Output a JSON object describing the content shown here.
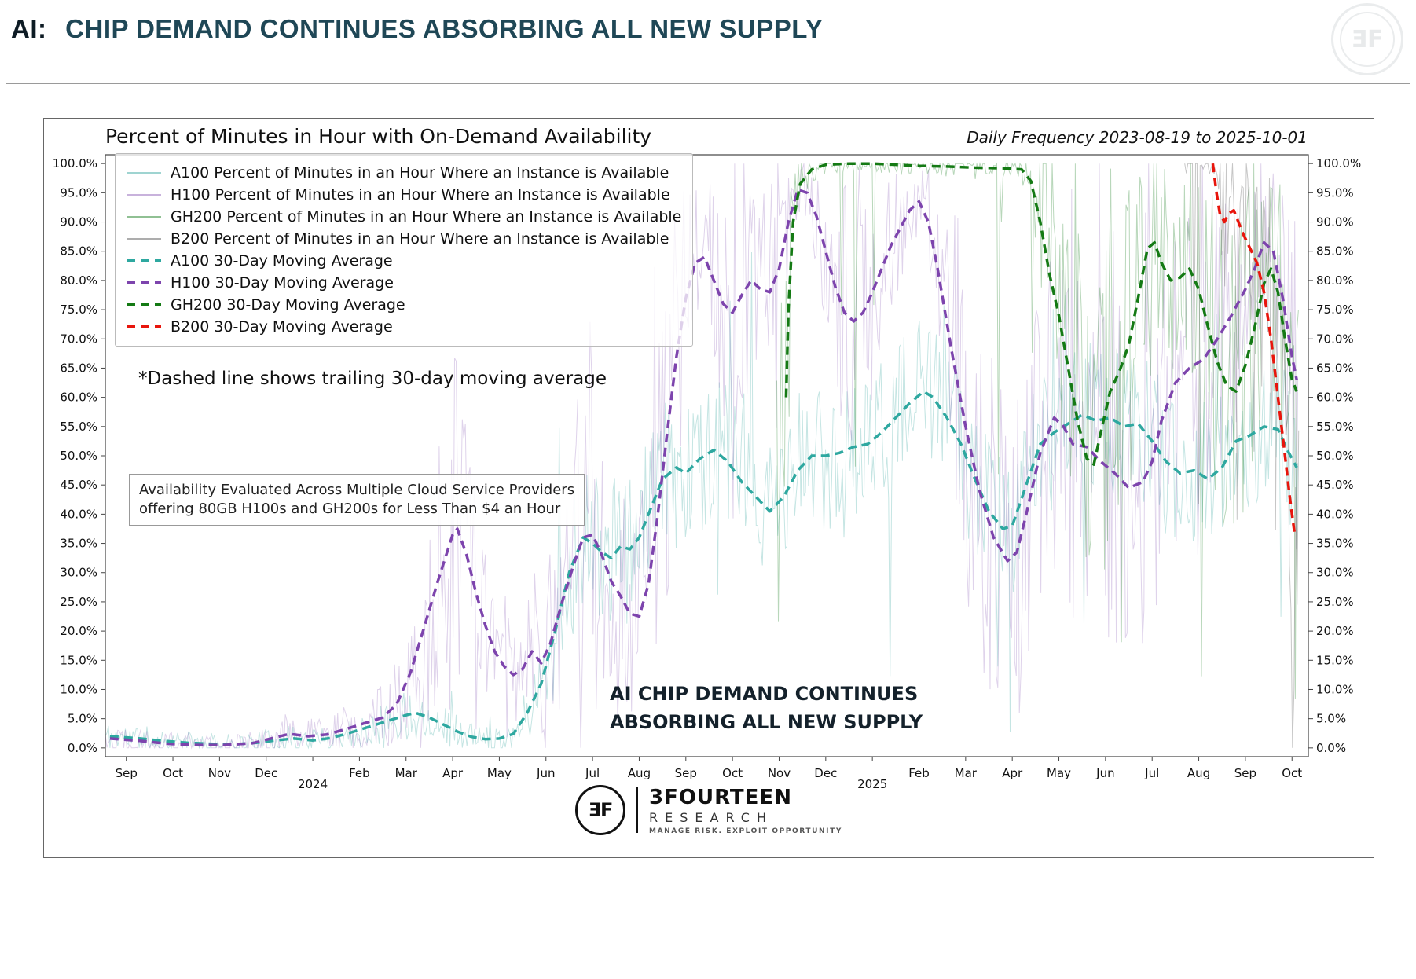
{
  "header": {
    "prefix": "AI:",
    "title": "CHIP DEMAND CONTINUES ABSORBING ALL NEW SUPPLY"
  },
  "footer": {
    "monogram": "ƎF",
    "brand": "3FOURTEEN",
    "brand_sub": "RESEARCH",
    "tagline": "MANAGE RISK. EXPLOIT OPPORTUNITY"
  },
  "chart_data": {
    "type": "line",
    "title": "Percent of Minutes in Hour with On-Demand Availability",
    "subtitle": "Daily Frequency 2023-08-19 to 2025-10-01",
    "note": "*Dashed line shows trailing 30-day moving average",
    "box_note": [
      "Availability Evaluated Across Multiple Cloud Service Providers",
      "offering 80GB H100s and GH200s for Less Than $4 an Hour"
    ],
    "watermark": [
      "AI CHIP DEMAND CONTINUES",
      "ABSORBING ALL NEW SUPPLY"
    ],
    "grid": false,
    "legend_position": "upper-left",
    "x_axis": {
      "unit": "months since Sep 2023",
      "range": [
        -0.45,
        25.35
      ],
      "tick_labels": [
        "Sep",
        "Oct",
        "Nov",
        "Dec",
        "2024",
        "Feb",
        "Mar",
        "Apr",
        "May",
        "Jun",
        "Jul",
        "Aug",
        "Sep",
        "Oct",
        "Nov",
        "Dec",
        "2025",
        "Feb",
        "Mar",
        "Apr",
        "May",
        "Jun",
        "Jul",
        "Aug",
        "Sep",
        "Oct"
      ]
    },
    "y_axis": {
      "min": 0,
      "max": 100,
      "step": 5,
      "mirrored_right": true,
      "tick_labels": [
        "0.0%",
        "5.0%",
        "10.0%",
        "15.0%",
        "20.0%",
        "25.0%",
        "30.0%",
        "35.0%",
        "40.0%",
        "45.0%",
        "50.0%",
        "55.0%",
        "60.0%",
        "65.0%",
        "70.0%",
        "75.0%",
        "80.0%",
        "85.0%",
        "90.0%",
        "95.0%",
        "100.0%"
      ]
    },
    "legend": [
      {
        "label": "A100 Percent of Minutes in an Hour Where an Instance is Available",
        "color": "rgba(64,170,163,0.5)",
        "dash": false
      },
      {
        "label": "H100 Percent of Minutes in an Hour Where an Instance is Available",
        "color": "rgba(132,84,178,0.45)",
        "dash": false
      },
      {
        "label": "GH200 Percent of Minutes in an Hour Where an Instance is Available",
        "color": "rgba(34,130,40,0.5)",
        "dash": false
      },
      {
        "label": "B200 Percent of Minutes in an Hour Where an Instance is Available",
        "color": "rgba(105,105,105,0.55)",
        "dash": false
      },
      {
        "label": "A100 30-Day Moving Average",
        "color": "#2ea8a0",
        "dash": true
      },
      {
        "label": "H100 30-Day Moving Average",
        "color": "#7d44ad",
        "dash": true
      },
      {
        "label": "GH200 30-Day Moving Average",
        "color": "#147a14",
        "dash": true
      },
      {
        "label": "B200 30-Day Moving Average",
        "color": "#e8150c",
        "dash": true
      }
    ],
    "series": [
      {
        "name": "A100 30-Day Moving Average",
        "key": "A100",
        "color": "#2ea8a0",
        "style": "dashed",
        "points": [
          [
            -0.35,
            2.0
          ],
          [
            0.3,
            1.6
          ],
          [
            0.8,
            1.2
          ],
          [
            1.3,
            0.9
          ],
          [
            1.8,
            0.7
          ],
          [
            2.3,
            0.6
          ],
          [
            2.8,
            0.9
          ],
          [
            3.2,
            1.3
          ],
          [
            3.6,
            1.6
          ],
          [
            4.0,
            1.3
          ],
          [
            4.4,
            1.7
          ],
          [
            4.8,
            2.6
          ],
          [
            5.2,
            3.6
          ],
          [
            5.6,
            4.6
          ],
          [
            6.0,
            5.6
          ],
          [
            6.2,
            6.0
          ],
          [
            6.5,
            5.2
          ],
          [
            6.8,
            4.0
          ],
          [
            7.1,
            2.8
          ],
          [
            7.4,
            1.9
          ],
          [
            7.7,
            1.5
          ],
          [
            8.0,
            1.6
          ],
          [
            8.3,
            2.4
          ],
          [
            8.6,
            6.0
          ],
          [
            8.9,
            11.0
          ],
          [
            9.2,
            20.0
          ],
          [
            9.5,
            30.0
          ],
          [
            9.8,
            36.0
          ],
          [
            10.0,
            35.0
          ],
          [
            10.2,
            33.5
          ],
          [
            10.4,
            32.5
          ],
          [
            10.6,
            34.5
          ],
          [
            10.8,
            34.0
          ],
          [
            11.0,
            36.0
          ],
          [
            11.2,
            40.0
          ],
          [
            11.5,
            46.0
          ],
          [
            11.8,
            48.0
          ],
          [
            12.0,
            47.0
          ],
          [
            12.3,
            49.5
          ],
          [
            12.6,
            51.0
          ],
          [
            12.9,
            49.0
          ],
          [
            13.2,
            45.5
          ],
          [
            13.5,
            43.0
          ],
          [
            13.8,
            40.5
          ],
          [
            14.1,
            43.0
          ],
          [
            14.4,
            47.5
          ],
          [
            14.7,
            50.0
          ],
          [
            15.0,
            50.0
          ],
          [
            15.3,
            50.5
          ],
          [
            15.6,
            51.5
          ],
          [
            15.9,
            52.0
          ],
          [
            16.2,
            54.0
          ],
          [
            16.5,
            56.5
          ],
          [
            16.8,
            59.0
          ],
          [
            17.1,
            61.0
          ],
          [
            17.3,
            60.0
          ],
          [
            17.6,
            56.5
          ],
          [
            17.9,
            52.0
          ],
          [
            18.2,
            46.0
          ],
          [
            18.5,
            40.5
          ],
          [
            18.8,
            37.5
          ],
          [
            19.0,
            38.0
          ],
          [
            19.3,
            45.0
          ],
          [
            19.6,
            52.0
          ],
          [
            19.9,
            54.0
          ],
          [
            20.2,
            55.5
          ],
          [
            20.5,
            57.0
          ],
          [
            20.8,
            56.0
          ],
          [
            21.1,
            56.5
          ],
          [
            21.4,
            55.0
          ],
          [
            21.7,
            55.5
          ],
          [
            22.0,
            52.5
          ],
          [
            22.3,
            49.0
          ],
          [
            22.6,
            47.0
          ],
          [
            22.9,
            47.5
          ],
          [
            23.2,
            46.0
          ],
          [
            23.5,
            48.0
          ],
          [
            23.8,
            52.5
          ],
          [
            24.1,
            53.5
          ],
          [
            24.4,
            55.0
          ],
          [
            24.7,
            54.5
          ],
          [
            24.9,
            51.0
          ],
          [
            25.1,
            48.0
          ]
        ]
      },
      {
        "name": "H100 30-Day Moving Average",
        "key": "H100",
        "color": "#7d44ad",
        "style": "dashed",
        "points": [
          [
            -0.35,
            1.6
          ],
          [
            0.3,
            1.2
          ],
          [
            0.9,
            0.7
          ],
          [
            1.5,
            0.5
          ],
          [
            2.1,
            0.5
          ],
          [
            2.7,
            0.8
          ],
          [
            3.1,
            1.6
          ],
          [
            3.5,
            2.4
          ],
          [
            3.9,
            2.0
          ],
          [
            4.3,
            2.3
          ],
          [
            4.7,
            3.2
          ],
          [
            5.1,
            4.2
          ],
          [
            5.5,
            5.2
          ],
          [
            5.8,
            7.5
          ],
          [
            6.1,
            13.0
          ],
          [
            6.4,
            21.0
          ],
          [
            6.7,
            29.0
          ],
          [
            7.0,
            36.5
          ],
          [
            7.1,
            37.5
          ],
          [
            7.3,
            33.0
          ],
          [
            7.5,
            26.5
          ],
          [
            7.7,
            21.0
          ],
          [
            7.9,
            16.5
          ],
          [
            8.1,
            14.0
          ],
          [
            8.3,
            12.5
          ],
          [
            8.5,
            13.5
          ],
          [
            8.7,
            16.5
          ],
          [
            8.9,
            14.5
          ],
          [
            9.1,
            18.0
          ],
          [
            9.35,
            25.0
          ],
          [
            9.6,
            31.5
          ],
          [
            9.8,
            36.0
          ],
          [
            10.0,
            36.5
          ],
          [
            10.2,
            33.0
          ],
          [
            10.4,
            28.5
          ],
          [
            10.6,
            26.0
          ],
          [
            10.8,
            23.0
          ],
          [
            11.0,
            22.5
          ],
          [
            11.2,
            28.0
          ],
          [
            11.4,
            40.0
          ],
          [
            11.6,
            54.0
          ],
          [
            11.8,
            67.0
          ],
          [
            12.0,
            77.0
          ],
          [
            12.2,
            83.0
          ],
          [
            12.4,
            84.0
          ],
          [
            12.6,
            80.0
          ],
          [
            12.8,
            76.0
          ],
          [
            13.0,
            74.5
          ],
          [
            13.2,
            77.5
          ],
          [
            13.4,
            80.0
          ],
          [
            13.6,
            78.5
          ],
          [
            13.8,
            78.0
          ],
          [
            14.0,
            82.0
          ],
          [
            14.2,
            90.0
          ],
          [
            14.4,
            95.5
          ],
          [
            14.6,
            95.0
          ],
          [
            14.8,
            91.0
          ],
          [
            15.0,
            85.0
          ],
          [
            15.2,
            79.0
          ],
          [
            15.4,
            74.5
          ],
          [
            15.6,
            73.0
          ],
          [
            15.8,
            74.5
          ],
          [
            16.0,
            78.0
          ],
          [
            16.2,
            82.0
          ],
          [
            16.4,
            86.0
          ],
          [
            16.6,
            89.0
          ],
          [
            16.8,
            92.0
          ],
          [
            17.0,
            93.5
          ],
          [
            17.2,
            90.0
          ],
          [
            17.4,
            82.0
          ],
          [
            17.7,
            68.0
          ],
          [
            18.0,
            55.0
          ],
          [
            18.3,
            44.0
          ],
          [
            18.6,
            36.0
          ],
          [
            18.9,
            32.0
          ],
          [
            19.1,
            33.5
          ],
          [
            19.3,
            40.0
          ],
          [
            19.6,
            50.5
          ],
          [
            19.9,
            56.5
          ],
          [
            20.1,
            55.0
          ],
          [
            20.3,
            52.0
          ],
          [
            20.6,
            51.5
          ],
          [
            20.9,
            49.0
          ],
          [
            21.2,
            47.0
          ],
          [
            21.5,
            44.5
          ],
          [
            21.8,
            45.5
          ],
          [
            22.0,
            49.0
          ],
          [
            22.2,
            56.0
          ],
          [
            22.5,
            62.5
          ],
          [
            22.8,
            65.0
          ],
          [
            23.1,
            66.5
          ],
          [
            23.4,
            70.0
          ],
          [
            23.7,
            74.0
          ],
          [
            24.0,
            78.5
          ],
          [
            24.2,
            82.0
          ],
          [
            24.4,
            86.5
          ],
          [
            24.6,
            85.0
          ],
          [
            24.8,
            77.0
          ],
          [
            25.0,
            67.0
          ],
          [
            25.1,
            63.0
          ]
        ]
      },
      {
        "name": "GH200 30-Day Moving Average",
        "key": "GH200",
        "color": "#147a14",
        "style": "dashed",
        "points": [
          [
            14.15,
            60.0
          ],
          [
            14.2,
            75.0
          ],
          [
            14.3,
            90.0
          ],
          [
            14.45,
            96.5
          ],
          [
            14.7,
            99.0
          ],
          [
            15.0,
            99.8
          ],
          [
            15.5,
            100.0
          ],
          [
            16.0,
            100.0
          ],
          [
            16.5,
            99.8
          ],
          [
            17.0,
            99.6
          ],
          [
            17.6,
            99.5
          ],
          [
            18.2,
            99.3
          ],
          [
            18.8,
            99.2
          ],
          [
            19.2,
            99.0
          ],
          [
            19.4,
            97.0
          ],
          [
            19.6,
            90.0
          ],
          [
            19.8,
            81.0
          ],
          [
            20.0,
            74.0
          ],
          [
            20.2,
            65.0
          ],
          [
            20.4,
            56.0
          ],
          [
            20.6,
            49.5
          ],
          [
            20.75,
            48.5
          ],
          [
            20.9,
            54.0
          ],
          [
            21.1,
            61.0
          ],
          [
            21.3,
            64.5
          ],
          [
            21.5,
            69.0
          ],
          [
            21.7,
            77.0
          ],
          [
            21.9,
            85.5
          ],
          [
            22.05,
            86.5
          ],
          [
            22.2,
            83.0
          ],
          [
            22.4,
            80.0
          ],
          [
            22.6,
            80.5
          ],
          [
            22.8,
            82.0
          ],
          [
            23.0,
            78.5
          ],
          [
            23.2,
            72.0
          ],
          [
            23.4,
            66.0
          ],
          [
            23.6,
            62.0
          ],
          [
            23.8,
            61.0
          ],
          [
            24.0,
            65.5
          ],
          [
            24.2,
            72.0
          ],
          [
            24.4,
            79.5
          ],
          [
            24.55,
            82.0
          ],
          [
            24.7,
            78.0
          ],
          [
            24.85,
            70.0
          ],
          [
            25.0,
            63.0
          ],
          [
            25.1,
            61.0
          ]
        ]
      },
      {
        "name": "B200 30-Day Moving Average",
        "key": "B200",
        "color": "#e8150c",
        "style": "dashed",
        "points": [
          [
            23.3,
            100.0
          ],
          [
            23.38,
            95.0
          ],
          [
            23.45,
            91.5
          ],
          [
            23.55,
            90.0
          ],
          [
            23.65,
            91.5
          ],
          [
            23.75,
            92.0
          ],
          [
            23.85,
            90.0
          ],
          [
            23.95,
            88.0
          ],
          [
            24.1,
            85.5
          ],
          [
            24.25,
            83.0
          ],
          [
            24.4,
            78.0
          ],
          [
            24.55,
            70.0
          ],
          [
            24.7,
            60.0
          ],
          [
            24.85,
            50.0
          ],
          [
            24.95,
            43.0
          ],
          [
            25.05,
            37.0
          ]
        ]
      }
    ],
    "raw_series": [
      {
        "name": "A100 Percent of Minutes in an Hour Where an Instance is Available",
        "follows": "A100",
        "color": "rgba(64,170,163,0.30)",
        "start": -0.45,
        "end": 25.15,
        "amp_base": 1.5,
        "amp_k": 0.5,
        "amp_max": 13,
        "spike_prob": 0.05,
        "spike_mag": 38,
        "seed": 11
      },
      {
        "name": "H100 Percent of Minutes in an Hour Where an Instance is Available",
        "follows": "H100",
        "color": "rgba(132,84,178,0.26)",
        "start": -0.45,
        "end": 25.15,
        "amp_base": 1.5,
        "amp_k": 0.8,
        "amp_max": 30,
        "spike_prob": 0.08,
        "spike_mag": 45,
        "seed": 22
      },
      {
        "name": "GH200 Percent of Minutes in an Hour Where an Instance is Available",
        "follows": "GH200",
        "color": "rgba(34,130,40,0.32)",
        "start": 13.95,
        "end": 25.15,
        "amp_base": 1.5,
        "amp_k": 1.0,
        "amp_max": 28,
        "spike_prob": 0.07,
        "spike_mag": 55,
        "seed": 33
      },
      {
        "name": "B200 Percent of Minutes in an Hour Where an Instance is Available",
        "follows": "B200",
        "color": "rgba(105,105,105,0.38)",
        "start": 22.7,
        "end": 25.15,
        "amp_base": 2,
        "amp_k": 1.0,
        "amp_max": 30,
        "spike_prob": 0.14,
        "spike_mag": 60,
        "seed": 44
      }
    ]
  }
}
